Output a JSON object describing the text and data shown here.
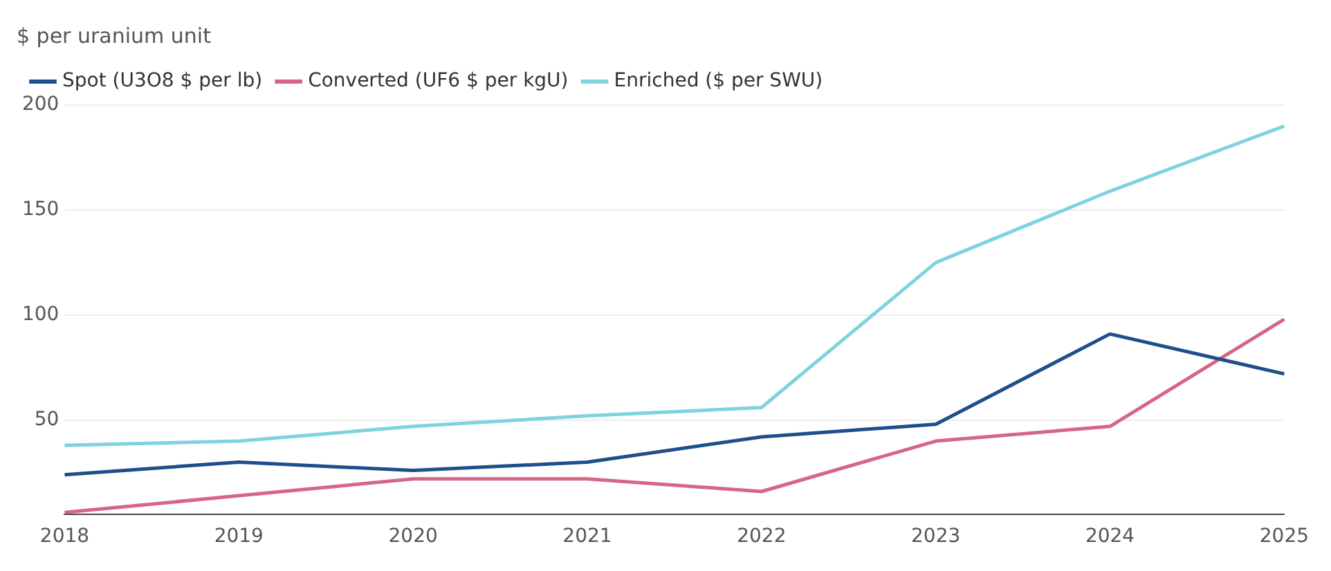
{
  "chart_data": {
    "type": "line",
    "title": "$ per uranium unit",
    "categories": [
      "2018",
      "2019",
      "2020",
      "2021",
      "2022",
      "2023",
      "2024",
      "2025"
    ],
    "series": [
      {
        "name": "Spot (U3O8 $ per lb)",
        "color": "#1f4e8c",
        "values": [
          24,
          30,
          26,
          30,
          42,
          48,
          91,
          72
        ]
      },
      {
        "name": "Converted (UF6 $ per kgU)",
        "color": "#d6658a",
        "values": [
          6,
          14,
          22,
          22,
          16,
          40,
          47,
          98
        ]
      },
      {
        "name": "Enriched ($ per SWU)",
        "color": "#7fd3de",
        "values": [
          38,
          40,
          47,
          52,
          56,
          125,
          159,
          190
        ]
      }
    ],
    "ylim": [
      5,
      200
    ],
    "yticks": [
      50,
      100,
      150,
      200
    ],
    "grid": "y",
    "legend": "top left",
    "marker": "none",
    "line_style": "solid"
  }
}
